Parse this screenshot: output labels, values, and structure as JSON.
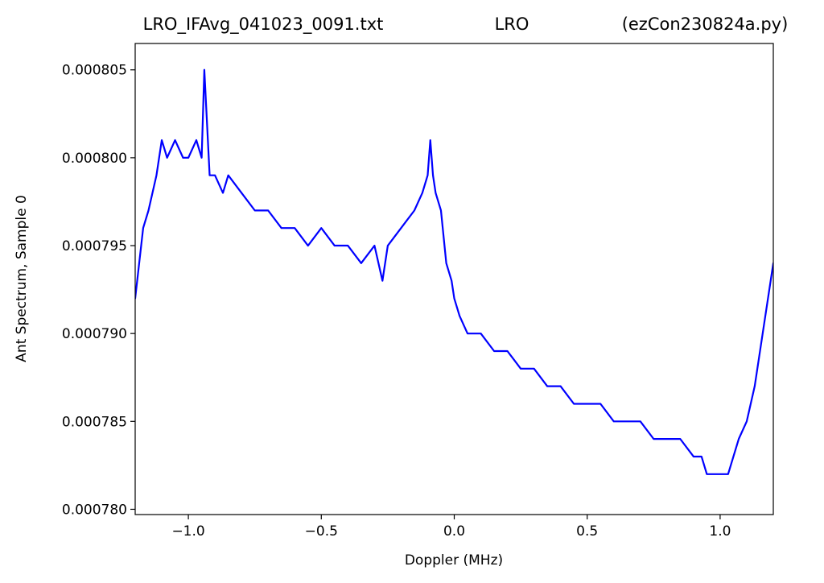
{
  "chart_data": {
    "type": "line",
    "title_parts": [
      "LRO_IFAvg_041023_0091.txt",
      "LRO",
      "(ezCon230824a.py)"
    ],
    "xlabel": "Doppler (MHz)",
    "ylabel": "Ant Spectrum, Sample 0",
    "xlim": [
      -1.2,
      1.2
    ],
    "ylim": [
      0.0007797,
      0.0008065
    ],
    "x_ticks": [
      -1.0,
      -0.5,
      0.0,
      0.5,
      1.0
    ],
    "x_tick_labels": [
      "−1.0",
      "−0.5",
      "0.0",
      "0.5",
      "1.0"
    ],
    "y_ticks": [
      0.00078,
      0.000785,
      0.00079,
      0.000795,
      0.0008,
      0.000805
    ],
    "y_tick_labels": [
      "0.000780",
      "0.000785",
      "0.000790",
      "0.000795",
      "0.000800",
      "0.000805"
    ],
    "grid": false,
    "series": [
      {
        "color": "#0000ff",
        "x": [
          -1.2,
          -1.17,
          -1.15,
          -1.12,
          -1.1,
          -1.08,
          -1.05,
          -1.02,
          -1.0,
          -0.97,
          -0.95,
          -0.94,
          -0.92,
          -0.9,
          -0.87,
          -0.85,
          -0.8,
          -0.75,
          -0.7,
          -0.65,
          -0.6,
          -0.55,
          -0.5,
          -0.45,
          -0.4,
          -0.35,
          -0.3,
          -0.27,
          -0.25,
          -0.2,
          -0.15,
          -0.12,
          -0.1,
          -0.09,
          -0.08,
          -0.07,
          -0.05,
          -0.03,
          -0.01,
          0.0,
          0.02,
          0.05,
          0.1,
          0.15,
          0.2,
          0.25,
          0.3,
          0.35,
          0.4,
          0.45,
          0.5,
          0.55,
          0.6,
          0.65,
          0.7,
          0.75,
          0.8,
          0.85,
          0.9,
          0.93,
          0.95,
          0.97,
          0.99,
          1.01,
          1.03,
          1.05,
          1.07,
          1.1,
          1.13,
          1.15,
          1.17,
          1.19,
          1.2
        ],
        "y": [
          0.000792,
          0.000796,
          0.000797,
          0.000799,
          0.000801,
          0.0008,
          0.000801,
          0.0008,
          0.0008,
          0.000801,
          0.0008,
          0.000805,
          0.000799,
          0.000799,
          0.000798,
          0.000799,
          0.000798,
          0.000797,
          0.000797,
          0.000796,
          0.000796,
          0.000795,
          0.000796,
          0.000795,
          0.000795,
          0.000794,
          0.000795,
          0.000793,
          0.000795,
          0.000796,
          0.000797,
          0.000798,
          0.000799,
          0.000801,
          0.000799,
          0.000798,
          0.000797,
          0.000794,
          0.000793,
          0.000792,
          0.000791,
          0.00079,
          0.00079,
          0.000789,
          0.000789,
          0.000788,
          0.000788,
          0.000787,
          0.000787,
          0.000786,
          0.000786,
          0.000786,
          0.000785,
          0.000785,
          0.000785,
          0.000784,
          0.000784,
          0.000784,
          0.000783,
          0.000783,
          0.000782,
          0.000782,
          0.000782,
          0.000782,
          0.000782,
          0.000783,
          0.000784,
          0.000785,
          0.000787,
          0.000789,
          0.000791,
          0.000793,
          0.000794
        ]
      }
    ]
  }
}
